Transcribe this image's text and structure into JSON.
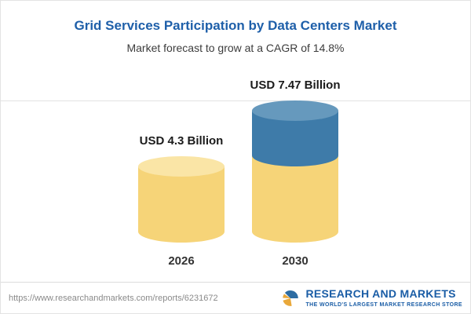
{
  "header": {
    "title": "Grid Services Participation by Data Centers Market",
    "subtitle": "Market forecast to grow at a CAGR of 14.8%"
  },
  "chart_data": {
    "type": "bar",
    "bar_style": "cylinder",
    "categories": [
      "2026",
      "2030"
    ],
    "values": [
      4.3,
      7.47
    ],
    "value_labels": [
      "USD 4.3 Billion",
      "USD 7.47 Billion"
    ],
    "unit": "USD Billion",
    "title": "Grid Services Participation by Data Centers Market",
    "subtitle": "Market forecast to grow at a CAGR of 14.8%",
    "cagr": "14.8%",
    "ylim": [
      0,
      7.47
    ],
    "grid": false,
    "legend": "none",
    "colors": {
      "base_segment": "#f6d478",
      "base_segment_cap": "#fae5a6",
      "growth_segment": "#3e7ba9",
      "growth_segment_cap": "#6699bd",
      "title_blue": "#1e5fa9"
    },
    "notes": "2030 cylinder is stacked: yellow base equal to the 2026 value plus a blue growth segment on top"
  },
  "footer": {
    "url": "https://www.researchandmarkets.com/reports/6231672",
    "logo_text": "RESEARCH AND MARKETS",
    "tagline": "THE WORLD'S LARGEST MARKET RESEARCH STORE"
  }
}
